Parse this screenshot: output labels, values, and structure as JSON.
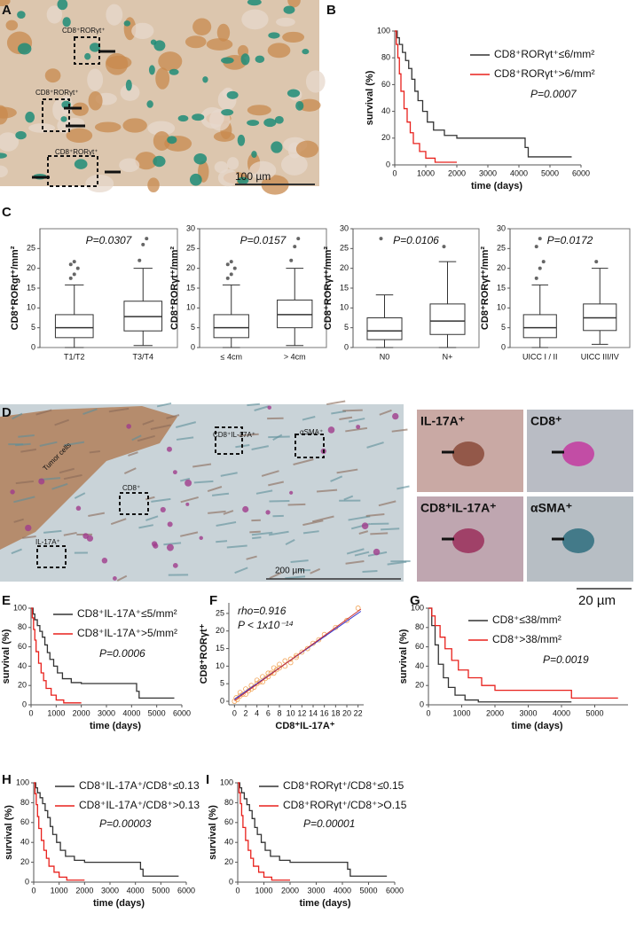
{
  "panel_labels": [
    "A",
    "B",
    "C",
    "D",
    "E",
    "F",
    "G",
    "H",
    "I"
  ],
  "image_a": {
    "labels": [
      "CD8⁺RORγt⁺",
      "CD8⁺RORγt⁺",
      "CD8⁺RORγt⁺"
    ],
    "scale": "100 µm"
  },
  "image_d": {
    "labels": [
      "Tumor cells",
      "CD8⁺IL-17A⁺",
      "αSMA⁺",
      "CD8⁺",
      "IL-17A⁺"
    ],
    "scale": "200 µm",
    "insets": [
      "IL-17A⁺",
      "CD8⁺",
      "CD8⁺IL-17A⁺",
      "αSMA⁺"
    ],
    "inset_scale": "20 µm"
  },
  "chart_data": [
    {
      "type": "km",
      "xlabel": "time (days)",
      "ylabel": "survival (%)",
      "xlim": [
        0,
        6000
      ],
      "xticks": [
        0,
        1000,
        2000,
        3000,
        4000,
        5000,
        6000
      ],
      "ylim": [
        0,
        100
      ],
      "yticks": [
        0,
        20,
        40,
        60,
        80,
        100
      ],
      "pvalue": "P=0.0007",
      "series": [
        {
          "name": "CD8⁺RORγt⁺≤6/mm²",
          "color": "#333333",
          "x": [
            0,
            80,
            80,
            150,
            150,
            250,
            250,
            350,
            350,
            450,
            450,
            550,
            550,
            650,
            650,
            750,
            750,
            900,
            900,
            1050,
            1050,
            1250,
            1250,
            1600,
            1600,
            2000,
            2000,
            4200,
            4200,
            4300,
            4300,
            5700
          ],
          "values": [
            100,
            100,
            95,
            95,
            90,
            90,
            84,
            84,
            78,
            78,
            72,
            72,
            64,
            64,
            55,
            55,
            48,
            48,
            40,
            40,
            32,
            32,
            26,
            26,
            22,
            22,
            20,
            20,
            13,
            13,
            6,
            6
          ]
        },
        {
          "name": "CD8⁺RORγt⁺>6/mm²",
          "color": "#e8211c",
          "x": [
            0,
            50,
            50,
            100,
            100,
            150,
            150,
            200,
            200,
            300,
            300,
            400,
            400,
            500,
            500,
            600,
            600,
            800,
            800,
            1000,
            1000,
            1300,
            1300,
            2000
          ],
          "values": [
            100,
            100,
            90,
            90,
            80,
            80,
            68,
            68,
            55,
            55,
            42,
            42,
            32,
            32,
            24,
            24,
            16,
            16,
            10,
            10,
            5,
            5,
            2,
            2
          ]
        }
      ]
    },
    {
      "type": "box",
      "ylabel": "CD8⁺RORgt⁺/mm²",
      "ylim": [
        0,
        30
      ],
      "yticks": [
        0,
        5,
        10,
        15,
        20,
        25
      ],
      "pvalue": "P=0.0307",
      "categories": [
        "T1/T2",
        "T3/T4"
      ],
      "boxes": [
        {
          "min": 0,
          "q1": 2.5,
          "median": 5,
          "q3": 8.3,
          "max": 15.8,
          "outliers": [
            17.5,
            18.5,
            20,
            21,
            21.7
          ]
        },
        {
          "min": 0.5,
          "q1": 4.2,
          "median": 7.8,
          "q3": 11.7,
          "max": 20,
          "outliers": [
            22,
            26,
            27.5
          ]
        }
      ]
    },
    {
      "type": "box",
      "ylabel": "CD8⁺RORγt⁺/mm²",
      "ylim": [
        0,
        30
      ],
      "yticks": [
        0,
        5,
        10,
        15,
        20,
        25,
        30
      ],
      "pvalue": "P=0.0157",
      "categories": [
        "≤ 4cm",
        "> 4cm"
      ],
      "boxes": [
        {
          "min": 0,
          "q1": 2.5,
          "median": 5,
          "q3": 8.3,
          "max": 15.8,
          "outliers": [
            17.5,
            18.5,
            20,
            21,
            21.7
          ]
        },
        {
          "min": 0.5,
          "q1": 5,
          "median": 8.3,
          "q3": 12,
          "max": 20,
          "outliers": [
            22,
            25.5,
            27.5
          ]
        }
      ]
    },
    {
      "type": "box",
      "ylabel": "CD8⁺RORγt⁺/mm²",
      "ylim": [
        0,
        30
      ],
      "yticks": [
        0,
        5,
        10,
        15,
        20,
        25,
        30
      ],
      "pvalue": "P=0.0106",
      "categories": [
        "N0",
        "N+"
      ],
      "boxes": [
        {
          "min": 0,
          "q1": 2,
          "median": 4.2,
          "q3": 7.5,
          "max": 13.3,
          "outliers": [
            27.5
          ]
        },
        {
          "min": 0,
          "q1": 3.3,
          "median": 6.7,
          "q3": 11,
          "max": 21.7,
          "outliers": [
            25.5
          ]
        }
      ]
    },
    {
      "type": "box",
      "ylabel": "CD8⁺RORγt⁺/mm²",
      "ylim": [
        0,
        30
      ],
      "yticks": [
        0,
        5,
        10,
        15,
        20,
        25,
        30
      ],
      "pvalue": "P=0.0172",
      "categories": [
        "UICC I / II",
        "UICC III/IV"
      ],
      "boxes": [
        {
          "min": 0,
          "q1": 2.5,
          "median": 5,
          "q3": 8.3,
          "max": 15.8,
          "outliers": [
            17.5,
            20,
            21.7,
            25.5,
            27.5
          ]
        },
        {
          "min": 0.8,
          "q1": 4.3,
          "median": 7.5,
          "q3": 11,
          "max": 20,
          "outliers": [
            21.7
          ]
        }
      ]
    },
    {
      "type": "km",
      "xlabel": "time (days)",
      "ylabel": "survival (%)",
      "xlim": [
        0,
        6000
      ],
      "xticks": [
        0,
        1000,
        2000,
        3000,
        4000,
        5000,
        6000
      ],
      "ylim": [
        0,
        100
      ],
      "yticks": [
        0,
        20,
        40,
        60,
        80,
        100
      ],
      "pvalue": "P=0.0006",
      "series": [
        {
          "name": "CD8⁺IL-17A⁺≤5/mm²",
          "color": "#333333",
          "x": [
            0,
            80,
            80,
            150,
            150,
            250,
            250,
            350,
            350,
            450,
            450,
            550,
            550,
            650,
            650,
            750,
            750,
            900,
            900,
            1050,
            1050,
            1250,
            1250,
            1600,
            1600,
            2000,
            2000,
            4200,
            4200,
            4300,
            4300,
            5700
          ],
          "values": [
            100,
            100,
            94,
            94,
            88,
            88,
            82,
            82,
            76,
            76,
            70,
            70,
            62,
            62,
            54,
            54,
            47,
            47,
            40,
            40,
            33,
            33,
            27,
            27,
            23,
            23,
            22,
            22,
            14,
            14,
            7,
            7
          ]
        },
        {
          "name": "CD8⁺IL-17A⁺>5/mm²",
          "color": "#e8211c",
          "x": [
            0,
            50,
            50,
            100,
            100,
            150,
            150,
            200,
            200,
            300,
            300,
            400,
            400,
            500,
            500,
            600,
            600,
            800,
            800,
            1000,
            1000,
            1300,
            1300,
            2000
          ],
          "values": [
            100,
            100,
            90,
            90,
            78,
            78,
            67,
            67,
            55,
            55,
            43,
            43,
            33,
            33,
            25,
            25,
            17,
            17,
            10,
            10,
            5,
            5,
            2,
            2
          ]
        }
      ]
    },
    {
      "type": "scatter",
      "xlabel": "CD8⁺IL-17A⁺",
      "ylabel": "CD8⁺RORγt⁺",
      "annotations": [
        "rho=0.916",
        "P < 1x10⁻¹⁴"
      ],
      "xlim": [
        -1,
        23
      ],
      "xticks": [
        0,
        2,
        4,
        6,
        8,
        10,
        12,
        14,
        16,
        18,
        20,
        22
      ],
      "ylim": [
        -1,
        28
      ],
      "yticks": [
        0,
        5,
        10,
        15,
        20,
        25
      ],
      "color": "#f2a65a",
      "x": [
        0,
        0.3,
        0.5,
        1,
        1,
        1.5,
        2,
        2,
        2.5,
        3,
        3,
        3.5,
        4,
        4,
        4.5,
        5,
        5,
        5.5,
        6,
        6,
        6.5,
        7,
        7,
        7.5,
        8,
        8,
        9,
        9,
        10,
        10,
        11,
        11,
        12,
        13,
        14,
        15,
        16,
        18,
        20,
        22
      ],
      "values": [
        0,
        1,
        0.5,
        1.5,
        2.5,
        2,
        2,
        3.5,
        3,
        3.5,
        4.5,
        4,
        5,
        6,
        5.5,
        5.5,
        7,
        6.5,
        7,
        8,
        8,
        8,
        9.5,
        9,
        9.5,
        10.5,
        10,
        11.5,
        12,
        11,
        13,
        12.5,
        14,
        15,
        16.5,
        17.5,
        19,
        21,
        23,
        26.5
      ],
      "lines": [
        {
          "color": "#3333cc",
          "x": [
            0,
            22.5
          ],
          "values": [
            0.6,
            25.6
          ]
        },
        {
          "color": "#cc3333",
          "x": [
            0,
            22.5
          ],
          "values": [
            0.2,
            26.2
          ]
        }
      ]
    },
    {
      "type": "km",
      "xlabel": "time (days)",
      "ylabel": "survival (%)",
      "xlim": [
        0,
        6000
      ],
      "xticks": [
        0,
        1000,
        2000,
        3000,
        4000,
        5000
      ],
      "ylim": [
        0,
        100
      ],
      "yticks": [
        0,
        20,
        40,
        60,
        80,
        100
      ],
      "pvalue": "P=0.0019",
      "series": [
        {
          "name": "CD8⁺≤38/mm²",
          "color": "#333333",
          "x": [
            0,
            100,
            100,
            200,
            200,
            300,
            300,
            450,
            450,
            600,
            600,
            800,
            800,
            1100,
            1100,
            1500,
            1500,
            4300
          ],
          "values": [
            100,
            100,
            82,
            82,
            62,
            62,
            42,
            42,
            28,
            28,
            18,
            18,
            10,
            10,
            5,
            5,
            3,
            3
          ]
        },
        {
          "name": "CD8⁺>38/mm²",
          "color": "#e8211c",
          "x": [
            0,
            100,
            100,
            200,
            200,
            350,
            350,
            500,
            500,
            700,
            700,
            900,
            900,
            1200,
            1200,
            1600,
            1600,
            2000,
            2000,
            4300,
            4300,
            5700
          ],
          "values": [
            100,
            100,
            92,
            92,
            82,
            82,
            70,
            70,
            58,
            58,
            46,
            46,
            36,
            36,
            28,
            28,
            20,
            20,
            15,
            15,
            7,
            7
          ]
        }
      ]
    },
    {
      "type": "km",
      "xlabel": "time (days)",
      "ylabel": "survival (%)",
      "xlim": [
        0,
        6000
      ],
      "xticks": [
        0,
        1000,
        2000,
        3000,
        4000,
        5000,
        6000
      ],
      "ylim": [
        0,
        100
      ],
      "yticks": [
        0,
        20,
        40,
        60,
        80,
        100
      ],
      "pvalue": "P=0.00003",
      "series": [
        {
          "name": "CD8⁺IL-17A⁺/CD8⁺≤0.13",
          "color": "#333333",
          "x": [
            0,
            80,
            80,
            150,
            150,
            250,
            250,
            350,
            350,
            450,
            450,
            550,
            550,
            650,
            650,
            750,
            750,
            900,
            900,
            1050,
            1050,
            1250,
            1250,
            1600,
            1600,
            2000,
            2000,
            4200,
            4200,
            4300,
            4300,
            5700
          ],
          "values": [
            100,
            100,
            95,
            95,
            90,
            90,
            85,
            85,
            79,
            79,
            72,
            72,
            65,
            65,
            56,
            56,
            48,
            48,
            40,
            40,
            32,
            32,
            26,
            26,
            22,
            22,
            20,
            20,
            13,
            13,
            6,
            6
          ]
        },
        {
          "name": "CD8⁺IL-17A⁺/CD8⁺>0.13",
          "color": "#e8211c",
          "x": [
            0,
            50,
            50,
            100,
            100,
            150,
            150,
            200,
            200,
            300,
            300,
            400,
            400,
            500,
            500,
            600,
            600,
            800,
            800,
            1000,
            1000,
            1300,
            1300,
            2000
          ],
          "values": [
            100,
            100,
            89,
            89,
            78,
            78,
            66,
            66,
            54,
            54,
            42,
            42,
            32,
            32,
            24,
            24,
            16,
            16,
            10,
            10,
            5,
            5,
            2,
            2
          ]
        }
      ]
    },
    {
      "type": "km",
      "xlabel": "time (days)",
      "ylabel": "survival (%)",
      "xlim": [
        0,
        6000
      ],
      "xticks": [
        0,
        1000,
        2000,
        3000,
        4000,
        5000,
        6000
      ],
      "ylim": [
        0,
        100
      ],
      "yticks": [
        0,
        20,
        40,
        60,
        80,
        100
      ],
      "pvalue": "P=0.00001",
      "series": [
        {
          "name": "CD8⁺RORγt⁺/CD8⁺≤0.15",
          "color": "#333333",
          "x": [
            0,
            80,
            80,
            150,
            150,
            250,
            250,
            350,
            350,
            450,
            450,
            550,
            550,
            650,
            650,
            750,
            750,
            900,
            900,
            1050,
            1050,
            1250,
            1250,
            1600,
            1600,
            2000,
            2000,
            4200,
            4200,
            4300,
            4300,
            5700
          ],
          "values": [
            100,
            100,
            95,
            95,
            90,
            90,
            84,
            84,
            78,
            78,
            72,
            72,
            64,
            64,
            55,
            55,
            48,
            48,
            40,
            40,
            32,
            32,
            26,
            26,
            22,
            22,
            20,
            20,
            13,
            13,
            6,
            6
          ]
        },
        {
          "name": "CD8⁺RORγt⁺/CD8⁺>O.15",
          "color": "#e8211c",
          "x": [
            0,
            50,
            50,
            100,
            100,
            150,
            150,
            200,
            200,
            300,
            300,
            400,
            400,
            500,
            500,
            600,
            600,
            800,
            800,
            1000,
            1000,
            1300,
            1300,
            2000
          ],
          "values": [
            100,
            100,
            90,
            90,
            79,
            79,
            67,
            67,
            55,
            55,
            42,
            42,
            32,
            32,
            24,
            24,
            16,
            16,
            10,
            10,
            5,
            5,
            2,
            2
          ]
        }
      ]
    }
  ]
}
